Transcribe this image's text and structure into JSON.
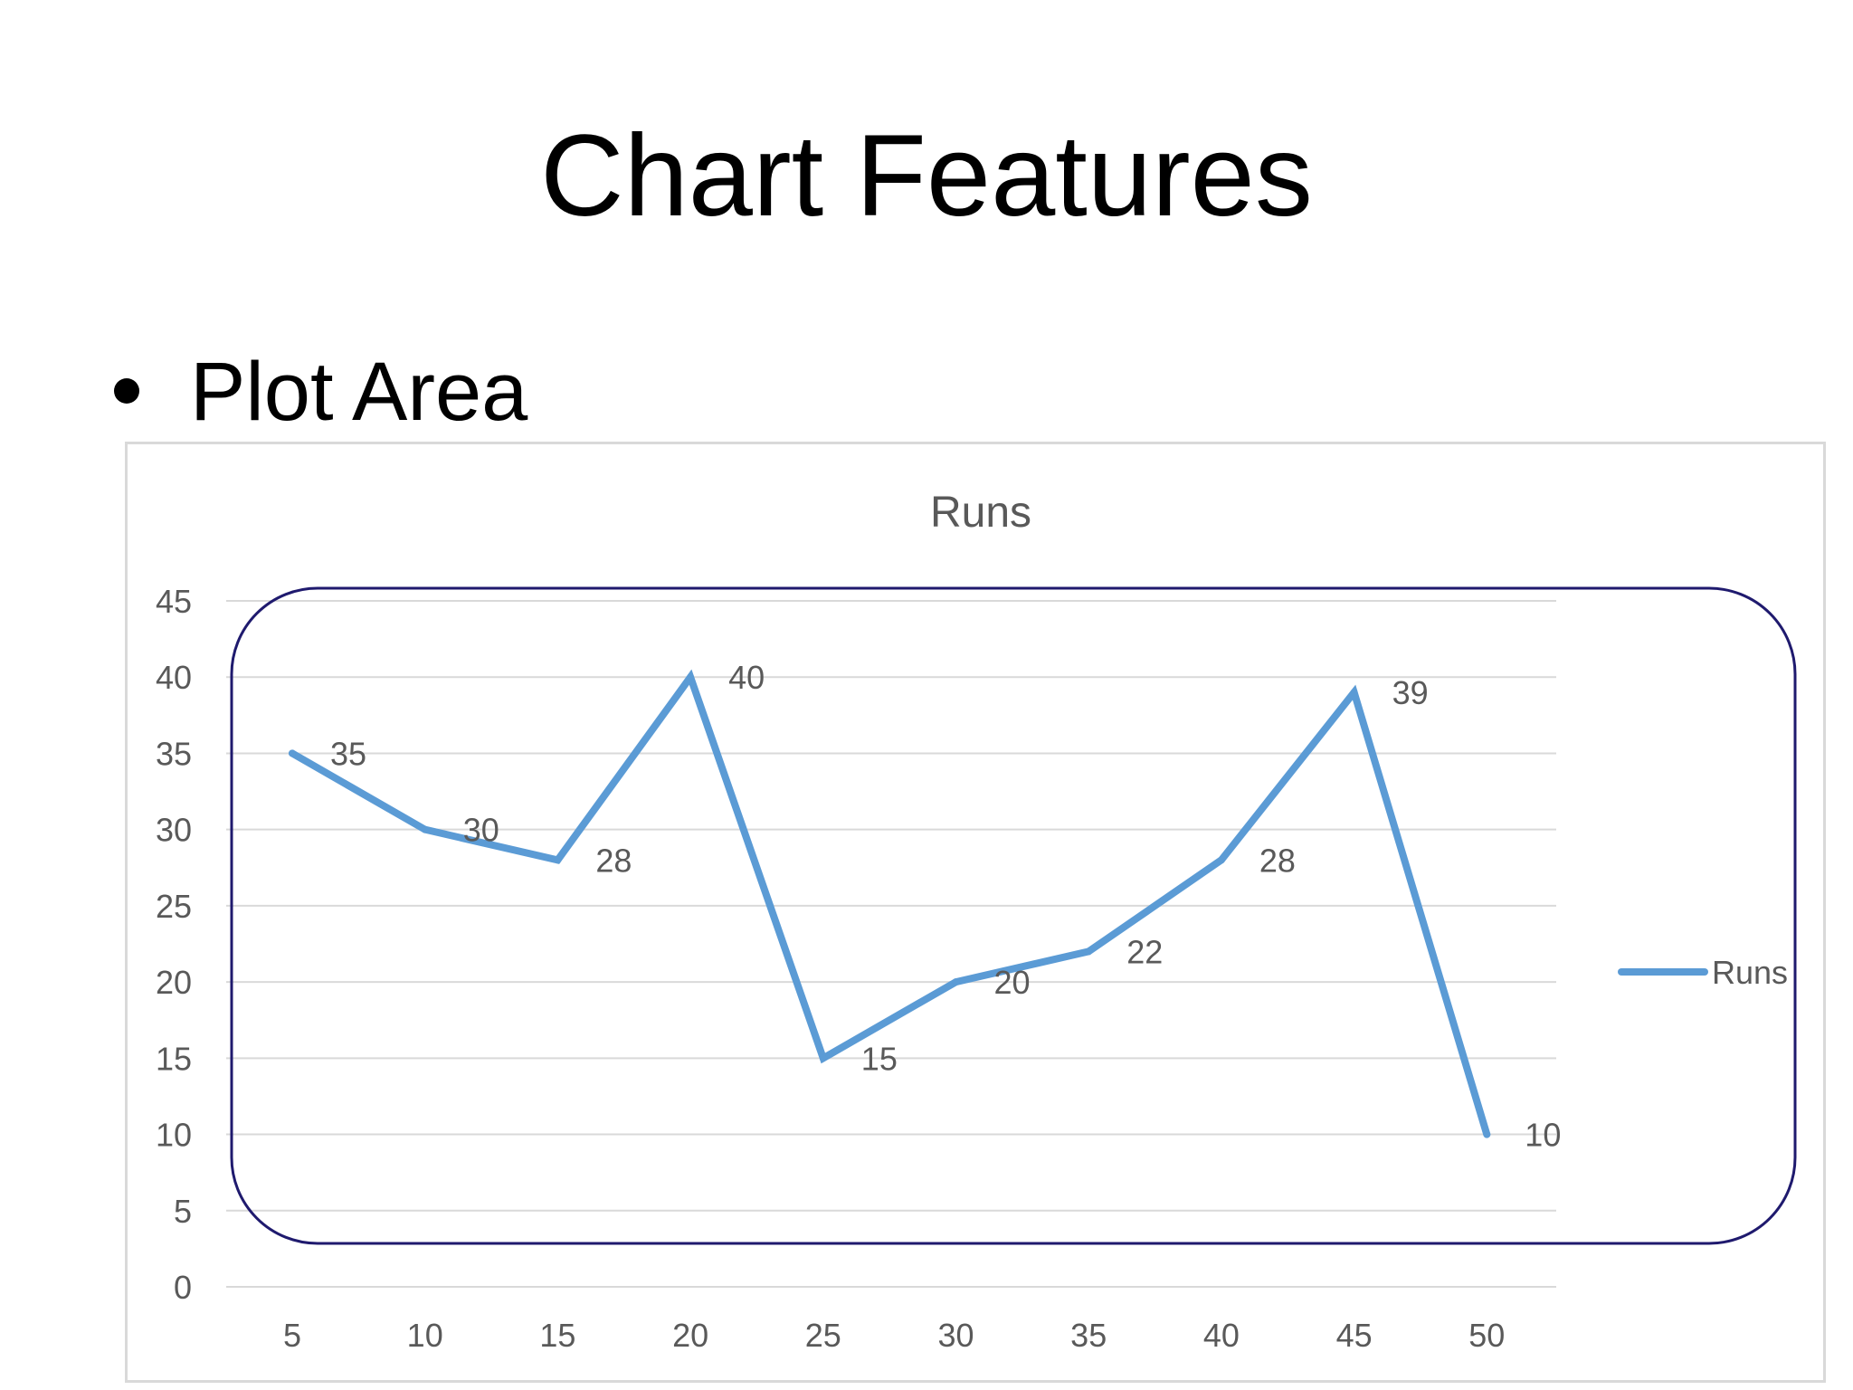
{
  "slide": {
    "title": "Chart Features",
    "bullet": "Plot Area"
  },
  "chart_data": {
    "type": "line",
    "title": "Runs",
    "xlabel": "",
    "ylabel": "",
    "categories": [
      "5",
      "10",
      "15",
      "20",
      "25",
      "30",
      "35",
      "40",
      "45",
      "50"
    ],
    "series": [
      {
        "name": "Runs",
        "values": [
          35,
          30,
          28,
          40,
          15,
          20,
          22,
          28,
          39,
          10
        ]
      }
    ],
    "ylim": [
      0,
      45
    ],
    "yticks": [
      0,
      5,
      10,
      15,
      20,
      25,
      30,
      35,
      40,
      45
    ],
    "grid": true,
    "legend": "right",
    "data_labels": true,
    "plot_area_highlighted": true,
    "colors": {
      "series": "#5b9bd5",
      "grid": "#d9d9d9",
      "text": "#595959",
      "plot_area_outline": "#1f1a6e",
      "frame": "#d9d9d9"
    }
  }
}
